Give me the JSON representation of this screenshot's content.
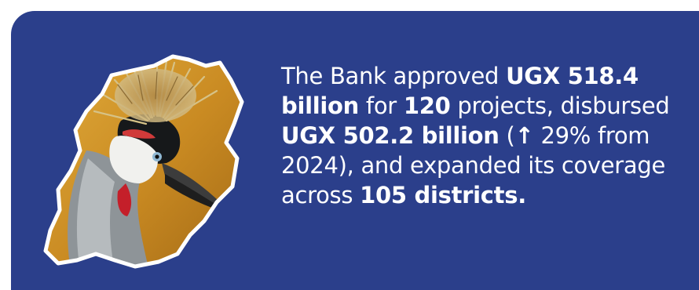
{
  "colors": {
    "panel_background": "#2b3f8b",
    "text": "#ffffff",
    "map_outline": "#ffffff",
    "map_background": "#d39a2a"
  },
  "image": {
    "description_icon": "crowned-crane-in-uganda-map-outline"
  },
  "statement": {
    "t1": "The Bank approved ",
    "b1": "UGX 518.4 billion",
    "t2": " for ",
    "b2": "120",
    "t3": " projects, disbursed ",
    "b3": "UGX 502.2 billion",
    "t4": " (",
    "arrow": "↑",
    "t5": " 29% from 2024), and expanded its coverage across ",
    "b4": "105 districts."
  }
}
